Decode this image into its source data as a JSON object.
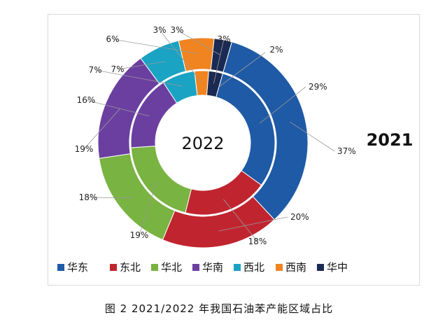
{
  "caption": "图 2  2021/2022 年我国石油苯产能区域占比",
  "chart_data": {
    "type": "pie",
    "categories": [
      "华东",
      "东北",
      "华北",
      "华南",
      "西北",
      "西南",
      "华中"
    ],
    "colors": [
      "#1f5aa6",
      "#c0252f",
      "#79b342",
      "#6b3fa0",
      "#1aa3c3",
      "#f08420",
      "#1b2a52"
    ],
    "series": [
      {
        "name": "2021",
        "values": [
          37,
          20,
          18,
          19,
          7,
          6,
          3
        ]
      },
      {
        "name": "2022",
        "values": [
          29,
          18,
          19,
          16,
          7,
          3,
          3
        ]
      }
    ],
    "labels_text": {
      "2021": [
        "37%",
        "20%",
        "18%",
        "19%",
        "7%",
        "6%",
        "3%"
      ],
      "2022": [
        "29%",
        "18%",
        "19%",
        "16%",
        "7%",
        "3%",
        "3%"
      ],
      "other": "2%"
    },
    "legend_position": "bottom"
  }
}
